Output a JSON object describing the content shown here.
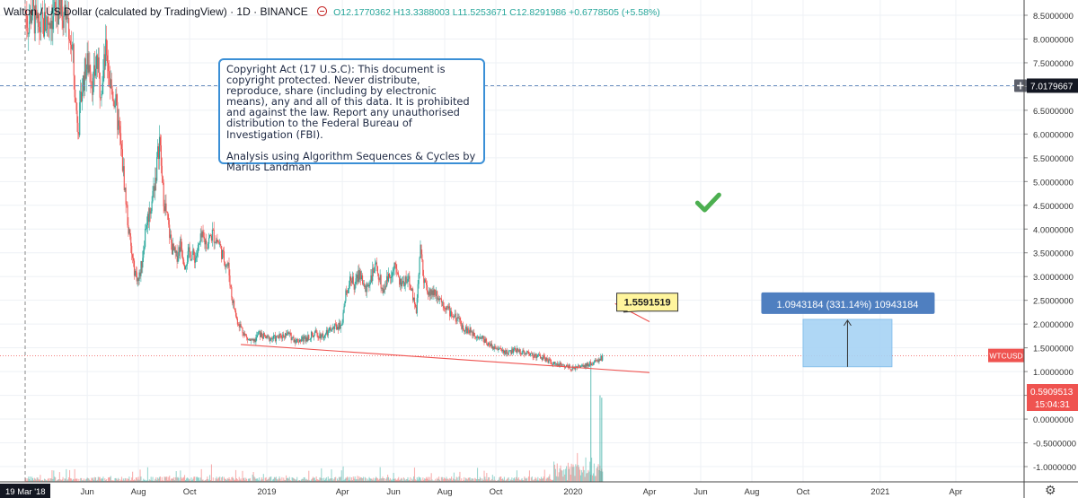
{
  "header": {
    "symbol": "Walton / US Dollar (calculated by TradingView) · 1D · BINANCE",
    "open": "O12.1770362",
    "high": "H13.3388003",
    "low": "L11.5253671",
    "close": "C12.8291986",
    "change": "+0.6778505 (+5.58%)"
  },
  "note": {
    "paragraph1": "Copyright Act (17 U.S.C):  This document is copyright protected. Never distribute, reproduce, share (including by electronic means), any and all of this data. It is prohibited and against the law. Report any unauthorised distribution to the Federal Bureau of Investigation (FBI).",
    "paragraph2": "Analysis using Algorithm Sequences & Cycles by Marius Landman"
  },
  "labels": {
    "target_value": "1.5591519",
    "measure": "1.0943184 (331.14%) 10943184",
    "crosshair_price": "7.0179667",
    "symbol_tag": "WTCUSD",
    "last_price": "0.5909513",
    "countdown": "15:04:31",
    "start_date": "19 Mar '18"
  },
  "icons": [
    "checkmark-icon",
    "gear-icon",
    "plus-icon",
    "dot-icon"
  ],
  "colors": {
    "up": "#26a69a",
    "down": "#ef5350",
    "trendline": "#ef5350",
    "measure_fill": "#a7d3f5",
    "measure_label": "#4f7fc0",
    "note_border": "#3a8fd6",
    "callout": "#fff59d",
    "checkmark": "#4caf50",
    "crosshair": "#6a8fbf"
  },
  "chart_data": {
    "type": "line",
    "title": "Walton / US Dollar (calculated by TradingView) · 1D · BINANCE",
    "xlabel": "",
    "ylabel": "",
    "xlim": [
      "2018-03-19",
      "2021-05-31"
    ],
    "ylim": [
      -1.25,
      8.65
    ],
    "y_ticks": [
      "8.5000000",
      "8.0000000",
      "7.5000000",
      "7.0000000",
      "6.5000000",
      "6.0000000",
      "5.5000000",
      "5.0000000",
      "4.5000000",
      "4.0000000",
      "3.5000000",
      "3.0000000",
      "2.5000000",
      "2.0000000",
      "1.5000000",
      "1.0000000",
      "0.5000000",
      "0.0000000",
      "-0.5000000",
      "-1.0000000"
    ],
    "y_tick_values": [
      8.5,
      8.0,
      7.5,
      7.0,
      6.5,
      6.0,
      5.5,
      5.0,
      4.5,
      4.0,
      3.5,
      3.0,
      2.5,
      2.0,
      1.5,
      1.0,
      0.5,
      0.0,
      -0.5,
      -1.0
    ],
    "x_ticks": [
      {
        "label": "Jun",
        "date": "2018-06-01"
      },
      {
        "label": "Aug",
        "date": "2018-08-01"
      },
      {
        "label": "Oct",
        "date": "2018-10-01"
      },
      {
        "label": "2019",
        "date": "2019-01-01"
      },
      {
        "label": "Apr",
        "date": "2019-04-01"
      },
      {
        "label": "Jun",
        "date": "2019-06-01"
      },
      {
        "label": "Aug",
        "date": "2019-08-01"
      },
      {
        "label": "Oct",
        "date": "2019-10-01"
      },
      {
        "label": "2020",
        "date": "2020-01-01"
      },
      {
        "label": "Apr",
        "date": "2020-04-01"
      },
      {
        "label": "Jun",
        "date": "2020-06-01"
      },
      {
        "label": "Aug",
        "date": "2020-08-01"
      },
      {
        "label": "Oct",
        "date": "2020-10-01"
      },
      {
        "label": "2021",
        "date": "2021-01-01"
      },
      {
        "label": "Apr",
        "date": "2021-04-01"
      }
    ],
    "series": [
      {
        "points": [
          [
            "2018-03-19",
            8.6
          ],
          [
            "2018-03-22",
            8.3
          ],
          [
            "2018-03-27",
            8.6
          ],
          [
            "2018-04-03",
            8.2
          ],
          [
            "2018-04-10",
            8.3
          ],
          [
            "2018-04-20",
            8.5
          ],
          [
            "2018-05-01",
            8.6
          ],
          [
            "2018-05-08",
            8.5
          ],
          [
            "2018-05-12",
            8.0
          ],
          [
            "2018-05-15",
            7.6
          ],
          [
            "2018-05-18",
            6.6
          ],
          [
            "2018-05-22",
            6.2
          ],
          [
            "2018-05-26",
            7.0
          ],
          [
            "2018-05-30",
            7.4
          ],
          [
            "2018-06-04",
            7.5
          ],
          [
            "2018-06-08",
            7.0
          ],
          [
            "2018-06-12",
            7.6
          ],
          [
            "2018-06-16",
            7.0
          ],
          [
            "2018-06-20",
            7.3
          ],
          [
            "2018-06-24",
            7.8
          ],
          [
            "2018-06-28",
            7.1
          ],
          [
            "2018-07-04",
            6.7
          ],
          [
            "2018-07-10",
            5.9
          ],
          [
            "2018-07-15",
            5.0
          ],
          [
            "2018-07-20",
            4.0
          ],
          [
            "2018-07-26",
            3.2
          ],
          [
            "2018-08-01",
            2.9
          ],
          [
            "2018-08-05",
            3.3
          ],
          [
            "2018-08-10",
            4.1
          ],
          [
            "2018-08-16",
            4.5
          ],
          [
            "2018-08-22",
            5.2
          ],
          [
            "2018-08-26",
            5.9
          ],
          [
            "2018-08-30",
            4.8
          ],
          [
            "2018-09-05",
            4.1
          ],
          [
            "2018-09-10",
            3.6
          ],
          [
            "2018-09-15",
            3.4
          ],
          [
            "2018-09-20",
            3.7
          ],
          [
            "2018-09-25",
            3.3
          ],
          [
            "2018-10-01",
            3.5
          ],
          [
            "2018-10-08",
            3.4
          ],
          [
            "2018-10-15",
            3.8
          ],
          [
            "2018-10-22",
            3.7
          ],
          [
            "2018-10-28",
            3.9
          ],
          [
            "2018-11-05",
            3.7
          ],
          [
            "2018-11-10",
            3.4
          ],
          [
            "2018-11-16",
            3.2
          ],
          [
            "2018-11-20",
            2.6
          ],
          [
            "2018-11-26",
            2.1
          ],
          [
            "2018-12-02",
            1.9
          ],
          [
            "2018-12-08",
            1.7
          ],
          [
            "2018-12-16",
            1.6
          ],
          [
            "2018-12-22",
            1.8
          ],
          [
            "2019-01-01",
            1.7
          ],
          [
            "2019-01-12",
            1.7
          ],
          [
            "2019-01-25",
            1.8
          ],
          [
            "2019-02-05",
            1.65
          ],
          [
            "2019-02-15",
            1.7
          ],
          [
            "2019-02-28",
            1.8
          ],
          [
            "2019-03-10",
            1.75
          ],
          [
            "2019-03-20",
            1.9
          ],
          [
            "2019-03-31",
            2.0
          ],
          [
            "2019-04-05",
            2.6
          ],
          [
            "2019-04-10",
            3.0
          ],
          [
            "2019-04-15",
            2.8
          ],
          [
            "2019-04-22",
            3.1
          ],
          [
            "2019-04-28",
            2.7
          ],
          [
            "2019-05-05",
            3.0
          ],
          [
            "2019-05-12",
            3.2
          ],
          [
            "2019-05-19",
            2.7
          ],
          [
            "2019-05-26",
            3.0
          ],
          [
            "2019-06-02",
            3.2
          ],
          [
            "2019-06-10",
            2.8
          ],
          [
            "2019-06-17",
            3.0
          ],
          [
            "2019-06-24",
            2.6
          ],
          [
            "2019-06-28",
            2.3
          ],
          [
            "2019-07-01",
            3.1
          ],
          [
            "2019-07-03",
            3.6
          ],
          [
            "2019-07-07",
            3.0
          ],
          [
            "2019-07-12",
            2.6
          ],
          [
            "2019-07-20",
            2.7
          ],
          [
            "2019-07-28",
            2.5
          ],
          [
            "2019-08-05",
            2.3
          ],
          [
            "2019-08-15",
            2.1
          ],
          [
            "2019-08-25",
            1.9
          ],
          [
            "2019-09-05",
            1.8
          ],
          [
            "2019-09-15",
            1.7
          ],
          [
            "2019-09-25",
            1.55
          ],
          [
            "2019-10-05",
            1.45
          ],
          [
            "2019-10-15",
            1.4
          ],
          [
            "2019-10-25",
            1.45
          ],
          [
            "2019-11-05",
            1.4
          ],
          [
            "2019-11-15",
            1.35
          ],
          [
            "2019-11-25",
            1.3
          ],
          [
            "2019-12-05",
            1.2
          ],
          [
            "2019-12-15",
            1.15
          ],
          [
            "2019-12-25",
            1.1
          ],
          [
            "2020-01-01",
            1.08
          ],
          [
            "2020-01-10",
            1.1
          ],
          [
            "2020-01-20",
            1.15
          ],
          [
            "2020-01-28",
            1.2
          ],
          [
            "2020-02-05",
            1.3
          ]
        ]
      }
    ],
    "volume_tall_bars": [
      [
        "2020-01-22",
        1.15
      ],
      [
        "2020-02-02",
        0.5
      ],
      [
        "2020-02-04",
        0.45
      ]
    ],
    "trendlines": [
      {
        "from": [
          "2018-12-01",
          1.57
        ],
        "to": [
          "2020-04-01",
          0.98
        ]
      },
      {
        "from": [
          "2020-02-20",
          2.43
        ],
        "to": [
          "2020-04-01",
          2.05
        ]
      }
    ],
    "measure_box": {
      "from": [
        "2020-10-01",
        1.1
      ],
      "to": [
        "2021-01-15",
        2.1
      ]
    },
    "callout_anchor": [
      "2020-03-01",
      2.25
    ],
    "callout_box": [
      "2020-02-22",
      2.65
    ],
    "checkmark_at": [
      "2020-06-10",
      4.55
    ],
    "crosshair": {
      "date": "2018-03-19",
      "price": 7.0179667
    },
    "current_price": 1.33,
    "grid": true,
    "legend": "none"
  }
}
